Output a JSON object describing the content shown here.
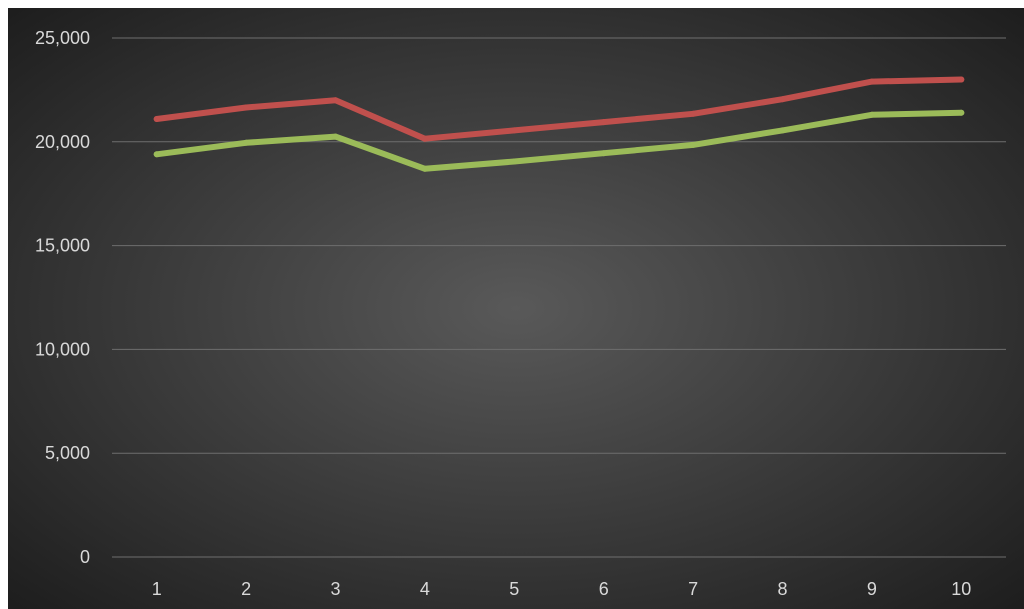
{
  "chart_data": {
    "type": "line",
    "title": "",
    "xlabel": "",
    "ylabel": "",
    "categories": [
      "1",
      "2",
      "3",
      "4",
      "5",
      "6",
      "7",
      "8",
      "9",
      "10"
    ],
    "ylim": [
      0,
      25000
    ],
    "yticks": [
      0,
      5000,
      10000,
      15000,
      20000,
      25000
    ],
    "ytick_labels": [
      "0",
      "5,000",
      "10,000",
      "15,000",
      "20,000",
      "25,000"
    ],
    "grid": true,
    "legend": "none",
    "series": [
      {
        "color": "#c0504d",
        "values": [
          21100,
          21650,
          22000,
          20150,
          20550,
          20950,
          21350,
          22050,
          22900,
          23000
        ]
      },
      {
        "color": "#9bbb59",
        "values": [
          19400,
          19950,
          20250,
          18700,
          19050,
          19450,
          19850,
          20550,
          21300,
          21400
        ]
      }
    ]
  }
}
